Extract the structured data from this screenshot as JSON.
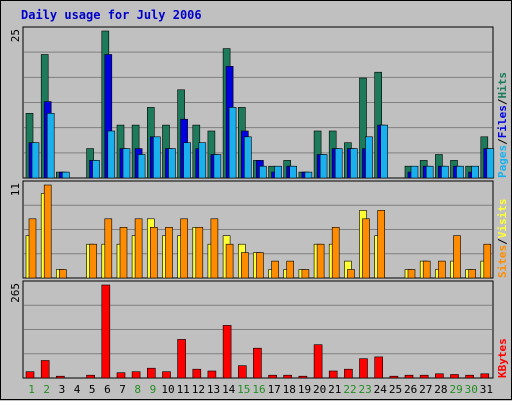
{
  "chart_data": {
    "type": "bar",
    "title": "Daily usage for July 2006",
    "days": [
      "1",
      "2",
      "3",
      "4",
      "5",
      "6",
      "7",
      "8",
      "9",
      "10",
      "11",
      "12",
      "13",
      "14",
      "15",
      "16",
      "17",
      "18",
      "19",
      "20",
      "21",
      "22",
      "23",
      "24",
      "25",
      "26",
      "27",
      "28",
      "29",
      "30",
      "31"
    ],
    "weekend_days": [
      "1",
      "2",
      "8",
      "9",
      "15",
      "16",
      "22",
      "23",
      "29",
      "30"
    ],
    "colors": {
      "title": "#0000cc",
      "plot_bg": "#c0c0c0",
      "grid": "#808080",
      "weekday_label": "#000000",
      "weekend_label": "#238e23",
      "hits": "#1d7a5a",
      "files": "#0000e0",
      "pages": "#1ab0ee",
      "visits": "#ffff33",
      "sites": "#ff8c00",
      "kbytes": "#ff0000"
    },
    "panels": [
      {
        "id": "hits-files-pages",
        "max_label": "25",
        "ymax": 25,
        "legend": [
          {
            "text": "Pages",
            "color": "#1ab0ee"
          },
          {
            "text": "/",
            "color": "#000000"
          },
          {
            "text": "Files",
            "color": "#0000e0"
          },
          {
            "text": "/",
            "color": "#000000"
          },
          {
            "text": "Hits",
            "color": "#1d7a5a"
          }
        ],
        "series": [
          {
            "name": "Hits",
            "color": "#1d7a5a",
            "values": [
              11,
              21,
              1,
              0,
              5,
              25,
              9,
              9,
              12,
              9,
              15,
              9,
              8,
              22,
              12,
              3,
              2,
              3,
              1,
              8,
              8,
              6,
              17,
              18,
              0,
              2,
              3,
              4,
              3,
              2,
              7
            ]
          },
          {
            "name": "Files",
            "color": "#0000e0",
            "values": [
              6,
              13,
              1,
              0,
              3,
              21,
              5,
              5,
              7,
              5,
              10,
              5,
              4,
              19,
              8,
              3,
              1,
              2,
              1,
              4,
              5,
              5,
              5,
              9,
              0,
              1,
              2,
              2,
              2,
              1,
              5
            ]
          },
          {
            "name": "Pages",
            "color": "#1ab0ee",
            "values": [
              6,
              11,
              1,
              0,
              3,
              8,
              5,
              4,
              7,
              5,
              6,
              6,
              4,
              12,
              7,
              2,
              2,
              2,
              1,
              4,
              5,
              5,
              7,
              9,
              0,
              2,
              2,
              2,
              2,
              2,
              5
            ]
          }
        ]
      },
      {
        "id": "sites-visits",
        "max_label": "11",
        "ymax": 11,
        "legend": [
          {
            "text": "Sites",
            "color": "#ff8c00"
          },
          {
            "text": "/",
            "color": "#000000"
          },
          {
            "text": "Visits",
            "color": "#ffff33"
          }
        ],
        "series": [
          {
            "name": "Visits",
            "color": "#ffff33",
            "values": [
              5,
              10,
              1,
              0,
              4,
              4,
              4,
              5,
              7,
              5,
              5,
              6,
              4,
              5,
              4,
              3,
              1,
              1,
              1,
              4,
              4,
              2,
              8,
              5,
              0,
              1,
              2,
              1,
              2,
              1,
              2
            ]
          },
          {
            "name": "Sites",
            "color": "#ff8c00",
            "values": [
              7,
              11,
              1,
              0,
              4,
              7,
              6,
              7,
              6,
              6,
              7,
              6,
              7,
              4,
              3,
              3,
              2,
              2,
              1,
              4,
              6,
              1,
              7,
              8,
              0,
              1,
              2,
              2,
              5,
              1,
              4
            ]
          }
        ]
      },
      {
        "id": "kbytes",
        "max_label": "265",
        "ymax": 265,
        "legend": [
          {
            "text": "KBytes",
            "color": "#ff0000"
          }
        ],
        "series": [
          {
            "name": "KBytes",
            "color": "#ff0000",
            "values": [
              18,
              50,
              5,
              0,
              8,
              265,
              15,
              18,
              28,
              18,
              110,
              25,
              20,
              150,
              35,
              85,
              8,
              8,
              5,
              95,
              20,
              25,
              55,
              60,
              5,
              8,
              8,
              12,
              10,
              8,
              12
            ]
          }
        ]
      }
    ]
  }
}
